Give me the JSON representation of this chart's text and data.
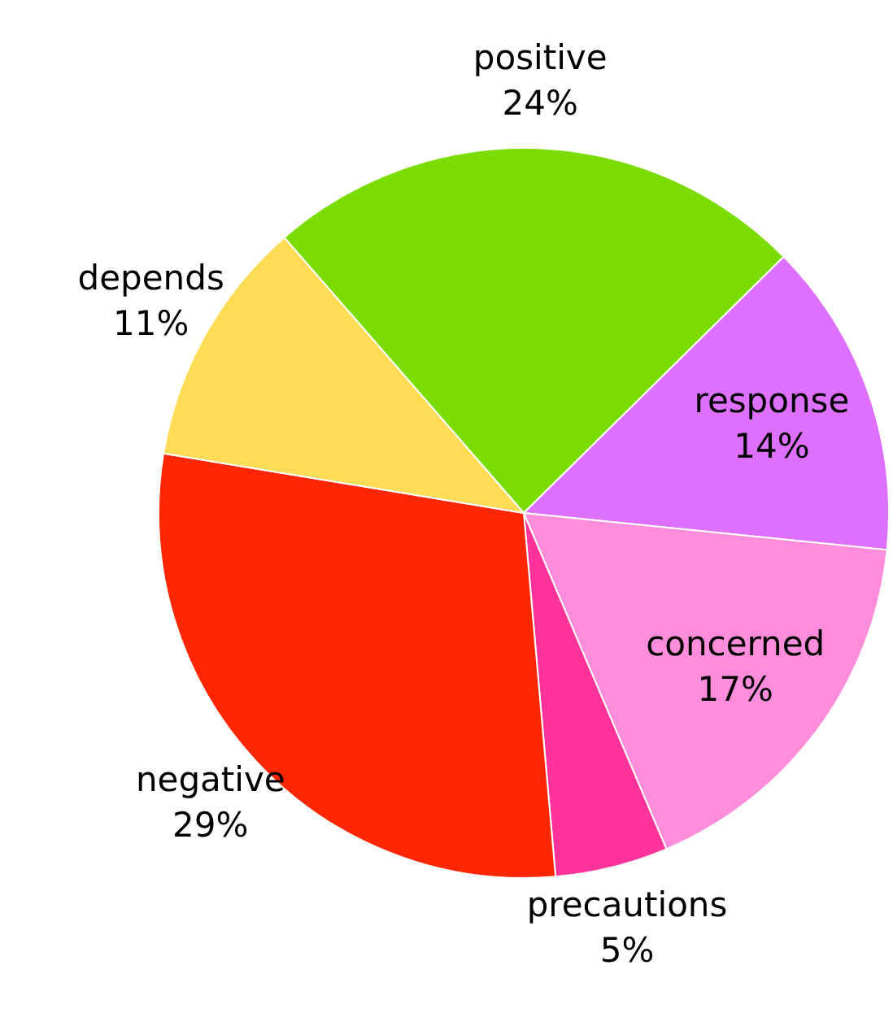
{
  "chart_data": {
    "type": "pie",
    "categories": [
      "positive",
      "response",
      "concerned",
      "precautions",
      "negative",
      "depends"
    ],
    "values": [
      24,
      14,
      17,
      5,
      29,
      11
    ],
    "colors": [
      "#7adc00",
      "#dd70ff",
      "#ff8ddc",
      "#ff3399",
      "#ff2600",
      "#ffdc55"
    ],
    "value_labels": [
      "24%",
      "14%",
      "17%",
      "5%",
      "29%",
      "11%"
    ],
    "legend": false
  }
}
